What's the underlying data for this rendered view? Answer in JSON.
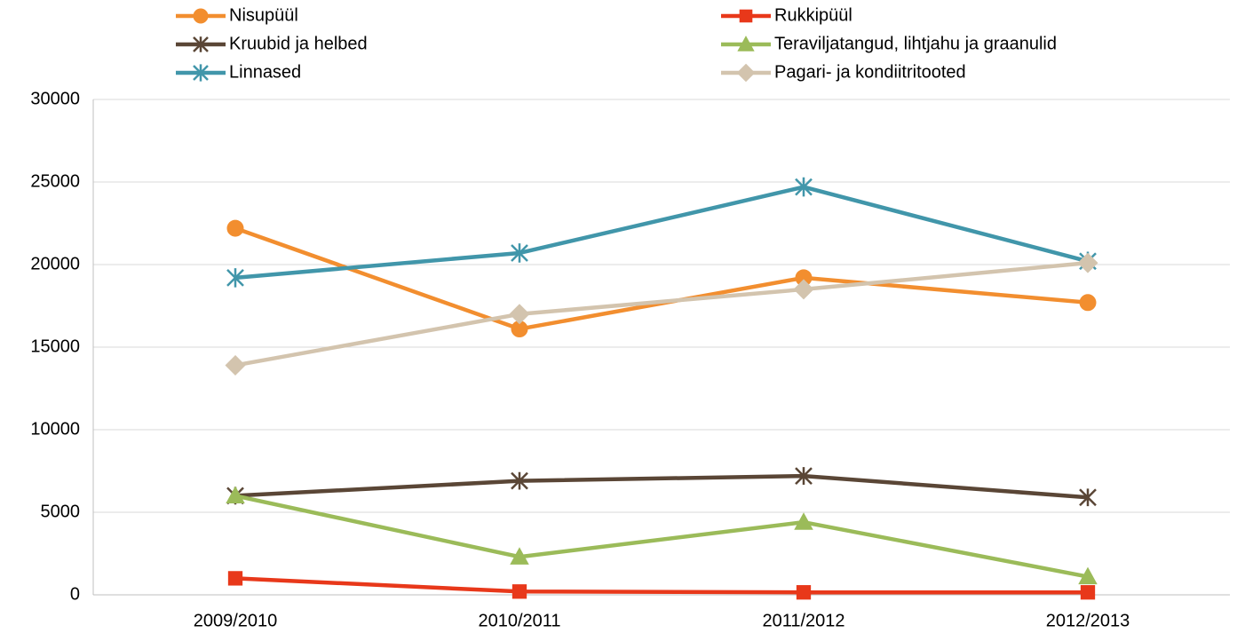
{
  "chart_data": {
    "type": "line",
    "categories": [
      "2009/2010",
      "2010/2011",
      "2011/2012",
      "2012/2013"
    ],
    "series": [
      {
        "name": "Nisupüül",
        "color": "#f28e2f",
        "marker": "circle",
        "values": [
          22200,
          16100,
          19200,
          17700
        ]
      },
      {
        "name": "Rukkipüül",
        "color": "#e8381a",
        "marker": "square",
        "values": [
          1000,
          200,
          150,
          150
        ]
      },
      {
        "name": "Kruubid ja helbed",
        "color": "#5a4636",
        "marker": "x-star",
        "values": [
          6000,
          6900,
          7200,
          5900
        ]
      },
      {
        "name": "Teraviljatangud, lihtjahu ja graanulid",
        "color": "#9bbb59",
        "marker": "triangle",
        "values": [
          6000,
          2300,
          4400,
          1100
        ]
      },
      {
        "name": "Linnased",
        "color": "#4196aa",
        "marker": "star",
        "values": [
          19200,
          20700,
          24700,
          20200
        ]
      },
      {
        "name": "Pagari- ja kondiitritooted",
        "color": "#d3c4ae",
        "marker": "diamond",
        "values": [
          13900,
          17000,
          18500,
          20100
        ]
      }
    ],
    "ylim": [
      0,
      30000
    ],
    "yticks": [
      0,
      5000,
      10000,
      15000,
      20000,
      25000,
      30000
    ],
    "grid": true
  }
}
